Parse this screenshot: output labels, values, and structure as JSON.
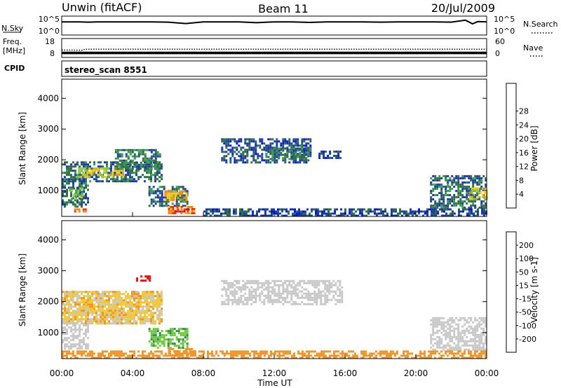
{
  "header": {
    "station": "Unwin (fitACF)",
    "beam": "Beam 11",
    "date": "20/Jul/2009"
  },
  "top_panels": {
    "nsky_label": "N.Sky",
    "nsky_ticks": [
      "10^5",
      "10^0"
    ],
    "nsearch_label": "N.Search",
    "nsearch_ticks": [
      "10^5",
      "10^0"
    ],
    "freq_label_line1": "Freq.",
    "freq_label_line2": "[MHz]",
    "freq_ticks": [
      "18",
      "8"
    ],
    "nave_label": "Nave",
    "nave_ticks": [
      "60",
      "0"
    ],
    "cpid_label": "CPID",
    "cpid_text": "stereo_scan 8551"
  },
  "axes": {
    "x_label": "Time UT",
    "x_ticks": [
      "00:00",
      "04:00",
      "08:00",
      "12:00",
      "16:00",
      "20:00",
      "00:00"
    ],
    "y_label": "Slant Range [km]",
    "y_ticks": [
      "1000",
      "2000",
      "3000",
      "4000"
    ]
  },
  "colorbars": {
    "power": {
      "label": "Power [dB]",
      "ticks": [
        "4",
        "8",
        "12",
        "16",
        "20",
        "24",
        "28"
      ],
      "colors": [
        "#0a14f0",
        "#1e3aa8",
        "#2f6e46",
        "#3f9a5a",
        "#8fc74a",
        "#f0c81e",
        "#f08c1e",
        "#e63c14",
        "#dc0a0a"
      ]
    },
    "velocity": {
      "label": "Velocity [m s-1]",
      "ticks": [
        "200",
        "100",
        "50",
        "15",
        "-15",
        "-50",
        "-100",
        "-200"
      ],
      "colors": [
        "#1e28c8",
        "#2e6ea0",
        "#2f8a4a",
        "#6ec83c",
        "#c8c8c8",
        "#f0c83c",
        "#f09628",
        "#e65a1e",
        "#dc0a0a"
      ]
    }
  },
  "chart_data": [
    {
      "type": "line",
      "title": "N.Sky",
      "x_range_hours": [
        0,
        24
      ],
      "ylim_log10": [
        0,
        5
      ],
      "series": [
        {
          "x": [
            0.0,
            0.5,
            1.0,
            1.5,
            2.0,
            3.0,
            4.0,
            5.0,
            6.0,
            7.0,
            8.0,
            9.0,
            10.0,
            11.0,
            12.0,
            13.0,
            14.0,
            15.0,
            16.0,
            17.0,
            18.0,
            19.0,
            20.0,
            21.0,
            22.0,
            22.8,
            23.2,
            23.5,
            24.0
          ],
          "values": [
            4.2,
            4.2,
            4.2,
            4.1,
            4.2,
            4.2,
            4.2,
            4.2,
            4.1,
            3.6,
            4.2,
            4.2,
            4.2,
            3.9,
            4.2,
            4.2,
            4.0,
            4.2,
            4.2,
            4.2,
            4.1,
            4.2,
            4.2,
            4.2,
            4.1,
            4.8,
            3.5,
            4.3,
            4.2
          ]
        }
      ]
    },
    {
      "type": "line",
      "title": "Freq. / Nave",
      "x_range_hours": [
        0,
        24
      ],
      "ylim_freq_mhz": [
        8,
        18
      ],
      "ylim_nave": [
        0,
        60
      ],
      "series": [
        {
          "x": [
            0,
            24
          ],
          "values": [
            10.9,
            10.9
          ]
        },
        {
          "x": [
            0,
            1.2,
            1.3,
            24
          ],
          "values": [
            12.8,
            12.6,
            13.4,
            13.4
          ]
        },
        {
          "x": [
            0,
            24
          ],
          "values": [
            10,
            10
          ]
        }
      ]
    },
    {
      "type": "heatmap",
      "title": "Power [dB]",
      "xlabel": "Time UT",
      "ylabel": "Slant Range [km]",
      "x_range_hours": [
        0,
        24
      ],
      "ylim_km": [
        180,
        4600
      ],
      "regions": [
        {
          "t0": 0.0,
          "t1": 5.6,
          "r0": 1300,
          "r1": 1950,
          "power": 8
        },
        {
          "t0": 0.8,
          "t1": 3.5,
          "r0": 1450,
          "r1": 1750,
          "power": 18
        },
        {
          "t0": 3.0,
          "t1": 5.5,
          "r0": 1700,
          "r1": 2350,
          "power": 10
        },
        {
          "t0": 0.0,
          "t1": 1.5,
          "r0": 500,
          "r1": 1400,
          "power": 8
        },
        {
          "t0": 0.4,
          "t1": 1.2,
          "r0": 700,
          "r1": 1100,
          "power": 14
        },
        {
          "t0": 4.9,
          "t1": 7.1,
          "r0": 520,
          "r1": 1150,
          "power": 8
        },
        {
          "t0": 5.8,
          "t1": 7.0,
          "r0": 700,
          "r1": 1000,
          "power": 20
        },
        {
          "t0": 6.0,
          "t1": 7.5,
          "r0": 240,
          "r1": 500,
          "power": 24
        },
        {
          "t0": 6.4,
          "t1": 7.2,
          "r0": 300,
          "r1": 420,
          "power": 28
        },
        {
          "t0": 9.0,
          "t1": 14.0,
          "r0": 1900,
          "r1": 2700,
          "power": 6
        },
        {
          "t0": 11.5,
          "t1": 14.0,
          "r0": 2000,
          "r1": 2400,
          "power": 10
        },
        {
          "t0": 14.5,
          "t1": 15.8,
          "r0": 2050,
          "r1": 2300,
          "power": 6
        },
        {
          "t0": 20.8,
          "t1": 24.0,
          "r0": 450,
          "r1": 1500,
          "power": 8
        },
        {
          "t0": 23.0,
          "t1": 24.0,
          "r0": 700,
          "r1": 1100,
          "power": 18
        },
        {
          "t0": 8.0,
          "t1": 24.0,
          "r0": 180,
          "r1": 420,
          "power": 6
        },
        {
          "t0": 0.7,
          "t1": 1.3,
          "r0": 300,
          "r1": 420,
          "power": 24
        }
      ]
    },
    {
      "type": "heatmap",
      "title": "Velocity [m s-1]",
      "xlabel": "Time UT",
      "ylabel": "Slant Range [km]",
      "x_range_hours": [
        0,
        24
      ],
      "ylim_km": [
        180,
        4600
      ],
      "regions": [
        {
          "t0": 0.0,
          "t1": 5.6,
          "r0": 1300,
          "r1": 2350,
          "velocity": -10
        },
        {
          "t0": 0.0,
          "t1": 5.6,
          "r0": 1300,
          "r1": 2350,
          "velocity": -30
        },
        {
          "t0": 0.0,
          "t1": 1.5,
          "r0": 500,
          "r1": 1400,
          "velocity": 0
        },
        {
          "t0": 4.9,
          "t1": 7.1,
          "r0": 520,
          "r1": 1150,
          "velocity": 30
        },
        {
          "t0": 6.0,
          "t1": 7.5,
          "r0": 240,
          "r1": 500,
          "velocity": -40
        },
        {
          "t0": 4.2,
          "t1": 5.0,
          "r0": 2650,
          "r1": 2850,
          "velocity": -200
        },
        {
          "t0": 9.0,
          "t1": 15.8,
          "r0": 1900,
          "r1": 2700,
          "velocity": 0
        },
        {
          "t0": 20.8,
          "t1": 24.0,
          "r0": 450,
          "r1": 1500,
          "velocity": 0
        },
        {
          "t0": 0.0,
          "t1": 24.0,
          "r0": 180,
          "r1": 420,
          "velocity": -40
        }
      ]
    }
  ]
}
